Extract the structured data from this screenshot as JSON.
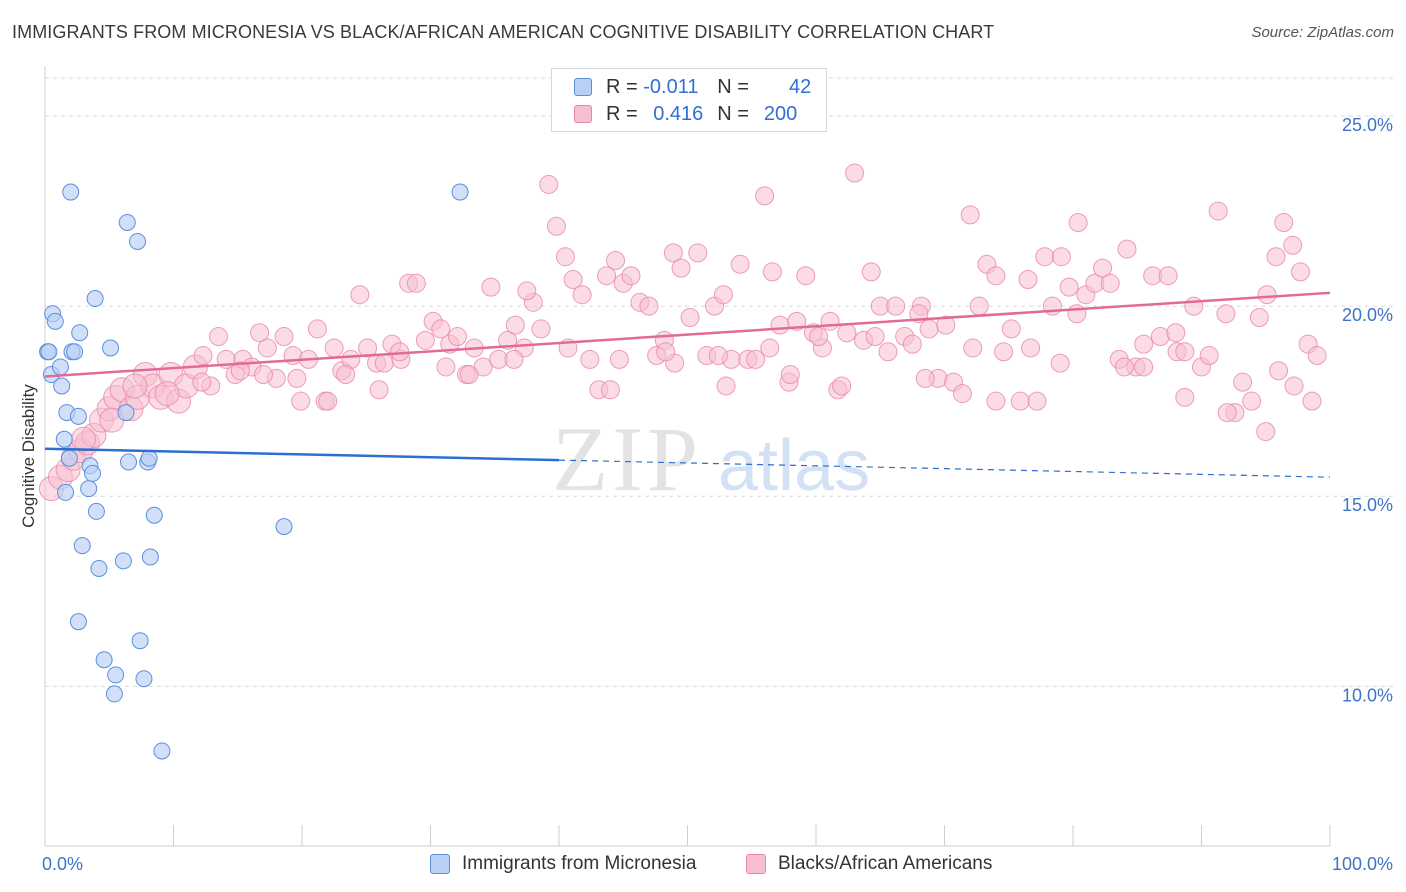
{
  "title": "IMMIGRANTS FROM MICRONESIA VS BLACK/AFRICAN AMERICAN COGNITIVE DISABILITY CORRELATION CHART",
  "source": "Source: ZipAtlas.com",
  "watermark": {
    "zip": "ZIP",
    "atlas": "atlas"
  },
  "legend": {
    "rows": [
      {
        "r_label": "R = ",
        "r_value": "-0.011",
        "n_label": "N = ",
        "n_value": "42"
      },
      {
        "r_label": "R = ",
        "r_value": "0.416",
        "n_label": "N = ",
        "n_value": "200"
      }
    ]
  },
  "colors": {
    "blue_fill": "#b8d0f5",
    "blue_stroke": "#5b8fdb",
    "blue_line": "#2b6fd0",
    "pink_fill": "#f7bfd0",
    "pink_stroke": "#e887a6",
    "pink_line": "#e2699a",
    "tick_label": "#3d74c9",
    "grid": "#d9d9d9"
  },
  "chart_data": {
    "type": "scatter",
    "title": "IMMIGRANTS FROM MICRONESIA VS BLACK/AFRICAN AMERICAN COGNITIVE DISABILITY CORRELATION CHART",
    "xlabel": "",
    "ylabel": "Cognitive Disability",
    "xlim": [
      0,
      100
    ],
    "ylim": [
      5.8,
      26.0
    ],
    "x_tick_labels": [
      "0.0%",
      "100.0%"
    ],
    "y_ticks": [
      10,
      15,
      20,
      25
    ],
    "y_tick_labels": [
      "10.0%",
      "15.0%",
      "20.0%",
      "25.0%"
    ],
    "grid": true,
    "legend_position": "top-center",
    "series": [
      {
        "name": "Immigrants from Micronesia",
        "color": "#5b8fdb",
        "trend": {
          "x": [
            0,
            40,
            100
          ],
          "y": [
            16.25,
            15.95,
            15.5
          ],
          "solid_until": 40
        },
        "points": [
          [
            0.2,
            18.8
          ],
          [
            0.5,
            18.2
          ],
          [
            0.6,
            19.8
          ],
          [
            0.8,
            19.6
          ],
          [
            1.2,
            18.4
          ],
          [
            1.3,
            17.9
          ],
          [
            1.5,
            16.5
          ],
          [
            1.6,
            15.1
          ],
          [
            1.7,
            17.2
          ],
          [
            1.9,
            16.0
          ],
          [
            2.1,
            18.8
          ],
          [
            2.0,
            23.0
          ],
          [
            2.3,
            18.8
          ],
          [
            2.6,
            17.1
          ],
          [
            2.7,
            19.3
          ],
          [
            2.9,
            13.7
          ],
          [
            2.6,
            11.7
          ],
          [
            3.4,
            15.2
          ],
          [
            3.5,
            15.8
          ],
          [
            3.7,
            15.6
          ],
          [
            3.9,
            20.2
          ],
          [
            4.0,
            14.6
          ],
          [
            4.2,
            13.1
          ],
          [
            4.6,
            10.7
          ],
          [
            5.1,
            18.9
          ],
          [
            5.4,
            9.8
          ],
          [
            5.5,
            10.3
          ],
          [
            6.1,
            13.3
          ],
          [
            6.3,
            17.2
          ],
          [
            6.5,
            15.9
          ],
          [
            6.4,
            22.2
          ],
          [
            7.2,
            21.7
          ],
          [
            7.4,
            11.2
          ],
          [
            7.7,
            10.2
          ],
          [
            8.0,
            15.9
          ],
          [
            8.1,
            16.0
          ],
          [
            8.2,
            13.4
          ],
          [
            8.5,
            14.5
          ],
          [
            9.1,
            8.3
          ],
          [
            18.6,
            14.2
          ],
          [
            32.3,
            23.0
          ],
          [
            0.3,
            18.8
          ]
        ]
      },
      {
        "name": "Blacks/African Americans",
        "color": "#e887a6",
        "trend": {
          "x": [
            0,
            100
          ],
          "y": [
            18.15,
            20.35
          ]
        },
        "points": [
          [
            0.5,
            15.2
          ],
          [
            1.2,
            15.5
          ],
          [
            1.8,
            15.7
          ],
          [
            2.2,
            16.0
          ],
          [
            2.8,
            16.2
          ],
          [
            3.3,
            16.4
          ],
          [
            3.8,
            16.6
          ],
          [
            4.4,
            17.0
          ],
          [
            5.0,
            17.3
          ],
          [
            5.5,
            17.6
          ],
          [
            6.0,
            17.8
          ],
          [
            6.7,
            17.3
          ],
          [
            7.2,
            17.6
          ],
          [
            7.8,
            18.2
          ],
          [
            8.4,
            17.9
          ],
          [
            9.0,
            17.6
          ],
          [
            9.8,
            18.2
          ],
          [
            10.4,
            17.5
          ],
          [
            11.0,
            17.9
          ],
          [
            11.7,
            18.4
          ],
          [
            12.3,
            18.7
          ],
          [
            12.9,
            17.9
          ],
          [
            13.5,
            19.2
          ],
          [
            14.1,
            18.6
          ],
          [
            14.8,
            18.2
          ],
          [
            15.4,
            18.6
          ],
          [
            16.1,
            18.4
          ],
          [
            16.7,
            19.3
          ],
          [
            17.3,
            18.9
          ],
          [
            18.0,
            18.1
          ],
          [
            18.6,
            19.2
          ],
          [
            19.3,
            18.7
          ],
          [
            19.9,
            17.5
          ],
          [
            20.5,
            18.6
          ],
          [
            21.2,
            19.4
          ],
          [
            21.8,
            17.5
          ],
          [
            22.5,
            18.9
          ],
          [
            23.1,
            18.3
          ],
          [
            23.8,
            18.6
          ],
          [
            24.5,
            20.3
          ],
          [
            25.1,
            18.9
          ],
          [
            25.8,
            18.5
          ],
          [
            26.4,
            18.5
          ],
          [
            27.0,
            19.0
          ],
          [
            27.7,
            18.6
          ],
          [
            28.3,
            20.6
          ],
          [
            28.9,
            20.6
          ],
          [
            29.6,
            19.1
          ],
          [
            30.2,
            19.6
          ],
          [
            30.8,
            19.4
          ],
          [
            31.5,
            19.0
          ],
          [
            32.1,
            19.2
          ],
          [
            32.8,
            18.2
          ],
          [
            33.4,
            18.9
          ],
          [
            34.1,
            18.4
          ],
          [
            34.7,
            20.5
          ],
          [
            35.3,
            18.6
          ],
          [
            36.0,
            19.1
          ],
          [
            36.6,
            19.5
          ],
          [
            37.3,
            18.9
          ],
          [
            38.0,
            20.1
          ],
          [
            38.6,
            19.4
          ],
          [
            39.2,
            23.2
          ],
          [
            39.8,
            22.1
          ],
          [
            40.5,
            21.3
          ],
          [
            41.1,
            20.7
          ],
          [
            41.8,
            20.3
          ],
          [
            42.4,
            18.6
          ],
          [
            43.1,
            17.8
          ],
          [
            43.7,
            20.8
          ],
          [
            44.4,
            21.2
          ],
          [
            45.0,
            20.6
          ],
          [
            45.6,
            20.8
          ],
          [
            46.3,
            20.1
          ],
          [
            47.0,
            20.0
          ],
          [
            47.6,
            18.7
          ],
          [
            48.2,
            19.1
          ],
          [
            48.9,
            21.4
          ],
          [
            49.5,
            21.0
          ],
          [
            50.2,
            19.7
          ],
          [
            50.8,
            21.4
          ],
          [
            51.5,
            18.7
          ],
          [
            52.1,
            20.0
          ],
          [
            52.8,
            20.3
          ],
          [
            53.4,
            18.6
          ],
          [
            54.1,
            21.1
          ],
          [
            54.7,
            18.6
          ],
          [
            55.3,
            18.6
          ],
          [
            56.0,
            22.9
          ],
          [
            56.6,
            20.9
          ],
          [
            57.2,
            19.5
          ],
          [
            57.9,
            18.0
          ],
          [
            58.5,
            19.6
          ],
          [
            59.2,
            20.8
          ],
          [
            59.8,
            19.3
          ],
          [
            60.5,
            18.9
          ],
          [
            61.1,
            19.6
          ],
          [
            61.7,
            17.8
          ],
          [
            62.4,
            19.3
          ],
          [
            63.0,
            23.5
          ],
          [
            63.7,
            19.1
          ],
          [
            64.3,
            20.9
          ],
          [
            65.0,
            20.0
          ],
          [
            65.6,
            18.8
          ],
          [
            66.2,
            20.0
          ],
          [
            66.9,
            19.2
          ],
          [
            67.5,
            19.0
          ],
          [
            68.2,
            20.0
          ],
          [
            68.8,
            19.4
          ],
          [
            69.5,
            18.1
          ],
          [
            70.1,
            19.5
          ],
          [
            70.7,
            18.0
          ],
          [
            71.4,
            17.7
          ],
          [
            72.0,
            22.4
          ],
          [
            72.7,
            20.0
          ],
          [
            73.3,
            21.1
          ],
          [
            74.0,
            20.8
          ],
          [
            74.6,
            18.8
          ],
          [
            75.2,
            19.4
          ],
          [
            75.9,
            17.5
          ],
          [
            76.5,
            20.7
          ],
          [
            77.2,
            17.5
          ],
          [
            77.8,
            21.3
          ],
          [
            78.4,
            20.0
          ],
          [
            79.1,
            21.3
          ],
          [
            79.7,
            20.5
          ],
          [
            80.4,
            22.2
          ],
          [
            81.0,
            20.3
          ],
          [
            81.7,
            20.6
          ],
          [
            82.3,
            21.0
          ],
          [
            82.9,
            20.6
          ],
          [
            83.6,
            18.6
          ],
          [
            84.2,
            21.5
          ],
          [
            84.9,
            18.4
          ],
          [
            85.5,
            18.4
          ],
          [
            86.2,
            20.8
          ],
          [
            86.8,
            19.2
          ],
          [
            87.4,
            20.8
          ],
          [
            88.1,
            18.8
          ],
          [
            88.7,
            17.6
          ],
          [
            89.4,
            20.0
          ],
          [
            90.0,
            18.4
          ],
          [
            90.6,
            18.7
          ],
          [
            91.3,
            22.5
          ],
          [
            91.9,
            19.8
          ],
          [
            92.6,
            17.2
          ],
          [
            93.2,
            18.0
          ],
          [
            93.9,
            17.5
          ],
          [
            94.5,
            19.7
          ],
          [
            95.1,
            20.3
          ],
          [
            95.8,
            21.3
          ],
          [
            96.4,
            22.2
          ],
          [
            97.1,
            21.6
          ],
          [
            97.7,
            20.9
          ],
          [
            98.3,
            19.0
          ],
          [
            99.0,
            18.7
          ],
          [
            17.0,
            18.2
          ],
          [
            22.0,
            17.5
          ],
          [
            26.0,
            17.8
          ],
          [
            33.0,
            18.2
          ],
          [
            37.5,
            20.4
          ],
          [
            44.0,
            17.8
          ],
          [
            49.0,
            18.5
          ],
          [
            53.0,
            17.9
          ],
          [
            58.0,
            18.2
          ],
          [
            62.0,
            17.9
          ],
          [
            68.5,
            18.1
          ],
          [
            74.0,
            17.5
          ],
          [
            79.0,
            18.5
          ],
          [
            84.0,
            18.4
          ],
          [
            88.0,
            19.3
          ],
          [
            92.0,
            17.2
          ],
          [
            96.0,
            18.3
          ],
          [
            98.6,
            17.5
          ],
          [
            95.0,
            16.7
          ],
          [
            97.2,
            17.9
          ],
          [
            88.7,
            18.8
          ],
          [
            85.5,
            19.0
          ],
          [
            80.3,
            19.8
          ],
          [
            76.7,
            18.9
          ],
          [
            72.2,
            18.9
          ],
          [
            68.0,
            19.8
          ],
          [
            64.6,
            19.2
          ],
          [
            60.2,
            19.2
          ],
          [
            56.4,
            18.9
          ],
          [
            52.4,
            18.7
          ],
          [
            48.3,
            18.8
          ],
          [
            44.7,
            18.6
          ],
          [
            40.7,
            18.9
          ],
          [
            36.5,
            18.6
          ],
          [
            31.2,
            18.4
          ],
          [
            27.6,
            18.8
          ],
          [
            23.4,
            18.2
          ],
          [
            19.6,
            18.1
          ],
          [
            15.2,
            18.3
          ],
          [
            12.2,
            18.0
          ],
          [
            9.5,
            17.7
          ],
          [
            7.0,
            17.9
          ],
          [
            5.2,
            17.0
          ],
          [
            3.0,
            16.5
          ]
        ]
      }
    ]
  },
  "bottom_legend": {
    "items": [
      {
        "label": "Immigrants from Micronesia"
      },
      {
        "label": "Blacks/African Americans"
      }
    ]
  }
}
